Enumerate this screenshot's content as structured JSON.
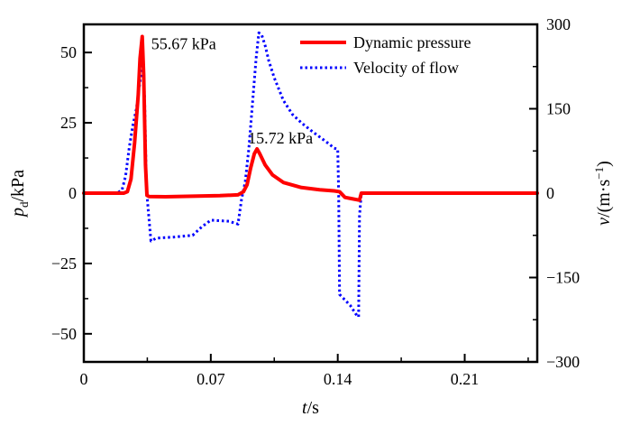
{
  "chart_data": {
    "type": "line",
    "title": "",
    "xlabel": {
      "italic": "t",
      "unit": "/s"
    },
    "ylabel_left": {
      "italic": "p",
      "sub": "d",
      "unit": "/kPa"
    },
    "ylabel_right": {
      "italic": "v",
      "unit": "/(m·s",
      "sup": "−1",
      "close": ")"
    },
    "xlim": [
      0,
      0.25
    ],
    "ylim_left": [
      -60,
      60
    ],
    "ylim_right": [
      -300,
      300
    ],
    "x_ticks": [
      0,
      0.07,
      0.14,
      0.21
    ],
    "x_tick_labels": [
      "0",
      "0.07",
      "0.14",
      "0.21"
    ],
    "y_left_ticks": [
      -50,
      -25,
      0,
      25,
      50
    ],
    "y_left_tick_labels": [
      "−50",
      "−25",
      "0",
      "25",
      "50"
    ],
    "y_right_ticks": [
      -300,
      -150,
      0,
      150,
      300
    ],
    "y_right_tick_labels": [
      "−300",
      "−150",
      "0",
      "150",
      "300"
    ],
    "legend_position": "top-right",
    "series": [
      {
        "name": "Dynamic pressure",
        "axis": "left",
        "color": "#ff0000",
        "style": "solid",
        "points": [
          [
            0,
            0
          ],
          [
            0.022,
            0
          ],
          [
            0.024,
            0.5
          ],
          [
            0.026,
            5
          ],
          [
            0.028,
            18
          ],
          [
            0.03,
            35
          ],
          [
            0.031,
            48
          ],
          [
            0.0322,
            55.67
          ],
          [
            0.033,
            42
          ],
          [
            0.034,
            10
          ],
          [
            0.0348,
            -0.8
          ],
          [
            0.036,
            -1.2
          ],
          [
            0.045,
            -1.3
          ],
          [
            0.06,
            -1.1
          ],
          [
            0.075,
            -0.9
          ],
          [
            0.085,
            -0.6
          ],
          [
            0.088,
            0.5
          ],
          [
            0.09,
            3
          ],
          [
            0.092,
            9
          ],
          [
            0.094,
            14
          ],
          [
            0.0955,
            15.72
          ],
          [
            0.097,
            14
          ],
          [
            0.1,
            10
          ],
          [
            0.104,
            6.5
          ],
          [
            0.11,
            3.8
          ],
          [
            0.12,
            2
          ],
          [
            0.13,
            1.2
          ],
          [
            0.138,
            0.8
          ],
          [
            0.141,
            0.5
          ],
          [
            0.144,
            -1.5
          ],
          [
            0.148,
            -2
          ],
          [
            0.152,
            -2.5
          ],
          [
            0.153,
            0
          ],
          [
            0.16,
            0
          ],
          [
            0.2,
            0
          ],
          [
            0.25,
            0
          ]
        ]
      },
      {
        "name": "Velocity of flow",
        "axis": "right",
        "color": "#0000ff",
        "style": "dotted",
        "points": [
          [
            0,
            0
          ],
          [
            0.018,
            0
          ],
          [
            0.021,
            5
          ],
          [
            0.023,
            30
          ],
          [
            0.025,
            80
          ],
          [
            0.027,
            120
          ],
          [
            0.029,
            150
          ],
          [
            0.031,
            200
          ],
          [
            0.0325,
            230
          ],
          [
            0.0335,
            170
          ],
          [
            0.0345,
            10
          ],
          [
            0.0355,
            -30
          ],
          [
            0.037,
            -85
          ],
          [
            0.04,
            -80
          ],
          [
            0.05,
            -78
          ],
          [
            0.06,
            -75
          ],
          [
            0.065,
            -60
          ],
          [
            0.07,
            -48
          ],
          [
            0.08,
            -50
          ],
          [
            0.085,
            -55
          ],
          [
            0.087,
            -10
          ],
          [
            0.089,
            20
          ],
          [
            0.091,
            80
          ],
          [
            0.093,
            160
          ],
          [
            0.095,
            240
          ],
          [
            0.0965,
            285
          ],
          [
            0.098,
            282
          ],
          [
            0.1,
            262
          ],
          [
            0.102,
            235
          ],
          [
            0.105,
            205
          ],
          [
            0.11,
            165
          ],
          [
            0.115,
            140
          ],
          [
            0.12,
            125
          ],
          [
            0.125,
            112
          ],
          [
            0.13,
            100
          ],
          [
            0.135,
            88
          ],
          [
            0.138,
            80
          ],
          [
            0.14,
            78
          ],
          [
            0.1405,
            0
          ],
          [
            0.141,
            -180
          ],
          [
            0.144,
            -190
          ],
          [
            0.147,
            -200
          ],
          [
            0.15,
            -215
          ],
          [
            0.1515,
            -220
          ],
          [
            0.152,
            -40
          ],
          [
            0.153,
            0
          ],
          [
            0.16,
            0
          ],
          [
            0.2,
            0
          ],
          [
            0.25,
            0
          ]
        ]
      }
    ],
    "annotations": [
      {
        "text": "55.67 kPa",
        "x": 0.0322,
        "y": 55.67,
        "axis": "left",
        "anchor": "right-of-peak"
      },
      {
        "text": "15.72 kPa",
        "x": 0.0955,
        "y": 15.72,
        "axis": "left",
        "anchor": "above-right-of-peak"
      }
    ]
  }
}
